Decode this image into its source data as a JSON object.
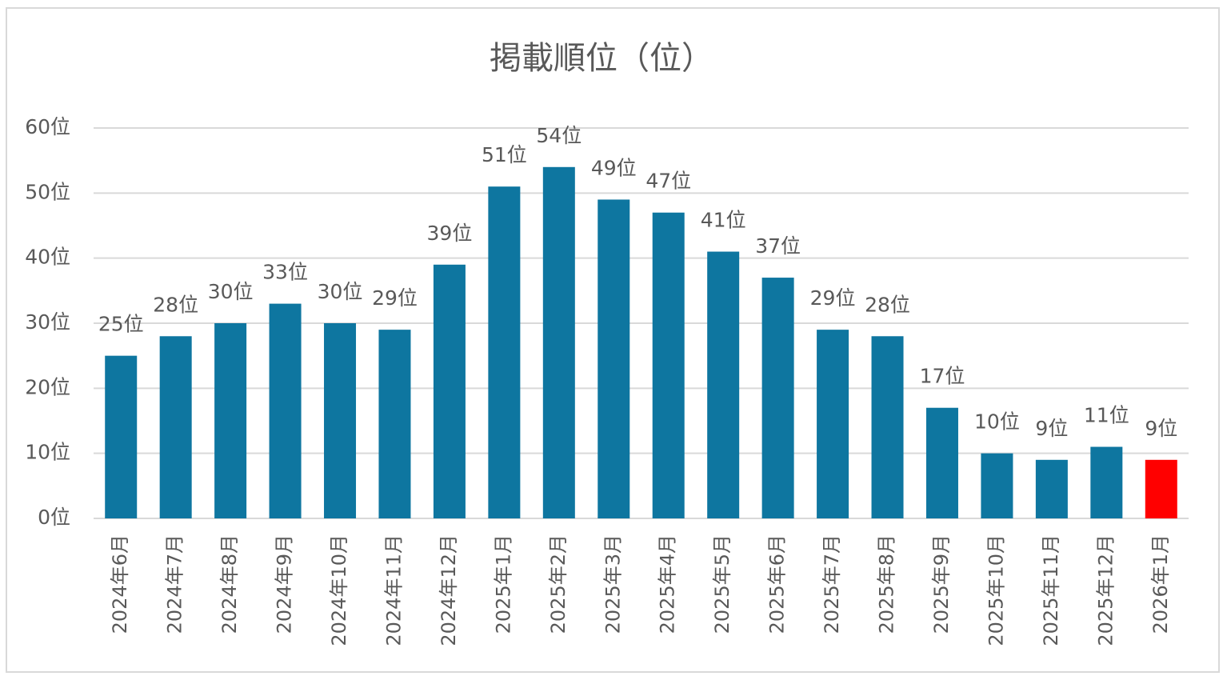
{
  "chart_data": {
    "type": "bar",
    "title": "掲載順位（位）",
    "categories": [
      "2024年6月",
      "2024年7月",
      "2024年8月",
      "2024年9月",
      "2024年10月",
      "2024年11月",
      "2024年12月",
      "2025年1月",
      "2025年2月",
      "2025年3月",
      "2025年4月",
      "2025年5月",
      "2025年6月",
      "2025年7月",
      "2025年8月",
      "2025年9月",
      "2025年10月",
      "2025年11月",
      "2025年12月",
      "2026年1月"
    ],
    "values": [
      25,
      28,
      30,
      33,
      30,
      29,
      39,
      51,
      54,
      49,
      47,
      41,
      37,
      29,
      28,
      17,
      10,
      9,
      11,
      9
    ],
    "value_labels": [
      "25位",
      "28位",
      "30位",
      "33位",
      "30位",
      "29位",
      "39位",
      "51位",
      "54位",
      "49位",
      "47位",
      "41位",
      "37位",
      "29位",
      "28位",
      "17位",
      "10位",
      "9位",
      "11位",
      "9位"
    ],
    "colors": [
      "#0e76a0",
      "#0e76a0",
      "#0e76a0",
      "#0e76a0",
      "#0e76a0",
      "#0e76a0",
      "#0e76a0",
      "#0e76a0",
      "#0e76a0",
      "#0e76a0",
      "#0e76a0",
      "#0e76a0",
      "#0e76a0",
      "#0e76a0",
      "#0e76a0",
      "#0e76a0",
      "#0e76a0",
      "#0e76a0",
      "#0e76a0",
      "#ff0000"
    ],
    "ylim": [
      0,
      60
    ],
    "yticks": [
      {
        "value": 0,
        "label": "0位"
      },
      {
        "value": 10,
        "label": "10位"
      },
      {
        "value": 20,
        "label": "20位"
      },
      {
        "value": 30,
        "label": "30位"
      },
      {
        "value": 40,
        "label": "40位"
      },
      {
        "value": 50,
        "label": "50位"
      },
      {
        "value": 60,
        "label": "60位"
      }
    ],
    "grid": true
  }
}
